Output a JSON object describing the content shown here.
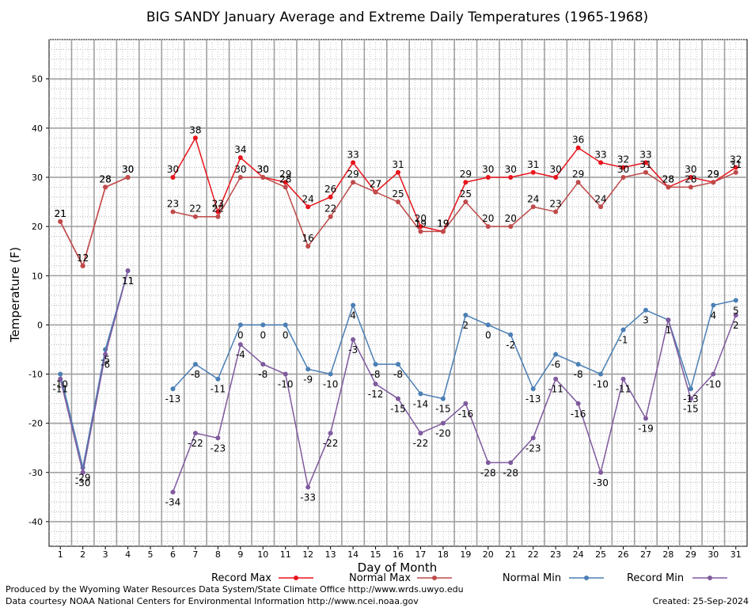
{
  "chart_data": {
    "type": "line",
    "title": "BIG SANDY January Average and Extreme Daily Temperatures (1965-1968)",
    "xlabel": "Day of Month",
    "ylabel": "Temperature (F)",
    "ylim": [
      -45,
      58
    ],
    "yticks": [
      -40,
      -30,
      -20,
      -10,
      0,
      10,
      20,
      30,
      40,
      50
    ],
    "grid": true,
    "legend_placement": "bottom",
    "x": [
      1,
      2,
      3,
      4,
      5,
      6,
      7,
      8,
      9,
      10,
      11,
      12,
      13,
      14,
      15,
      16,
      17,
      18,
      19,
      20,
      21,
      22,
      23,
      24,
      25,
      26,
      27,
      28,
      29,
      30,
      31
    ],
    "series": [
      {
        "name": "Record Max",
        "color": "#e8141c",
        "values": [
          21,
          12,
          28,
          30,
          null,
          30,
          38,
          23,
          34,
          30,
          29,
          24,
          26,
          33,
          27,
          31,
          20,
          19,
          29,
          30,
          30,
          31,
          30,
          36,
          33,
          32,
          33,
          28,
          30,
          29,
          32
        ]
      },
      {
        "name": "Normal Max",
        "color": "#bf4a4a",
        "values": [
          21,
          12,
          28,
          30,
          null,
          23,
          22,
          22,
          30,
          30,
          28,
          16,
          22,
          29,
          27,
          25,
          19,
          19,
          25,
          20,
          20,
          24,
          23,
          29,
          24,
          30,
          31,
          28,
          28,
          29,
          31
        ]
      },
      {
        "name": "Normal Min",
        "color": "#4a7fb5",
        "values": [
          -10,
          -29,
          -5,
          11,
          null,
          -13,
          -8,
          -11,
          0,
          0,
          0,
          -9,
          -10,
          4,
          -8,
          -8,
          -14,
          -15,
          2,
          0,
          -2,
          -13,
          -6,
          -8,
          -10,
          -1,
          3,
          1,
          -13,
          4,
          5
        ]
      },
      {
        "name": "Record Min",
        "color": "#7f5a9e",
        "values": [
          -11,
          -30,
          -6,
          11,
          null,
          -34,
          -22,
          -23,
          -4,
          -8,
          -10,
          -33,
          -22,
          -3,
          -12,
          -15,
          -22,
          -20,
          -16,
          -28,
          -28,
          -23,
          -11,
          -16,
          -30,
          -11,
          -19,
          1,
          -15,
          -10,
          2
        ]
      }
    ]
  },
  "footer": {
    "produced_by": "Produced by the Wyoming Water Resources Data System/State Climate Office http://www.wrds.uwyo.edu",
    "courtesy": "Data courtesy NOAA National Centers for Environmental Information http://www.ncei.noaa.gov",
    "created": "Created:  25-Sep-2024"
  }
}
